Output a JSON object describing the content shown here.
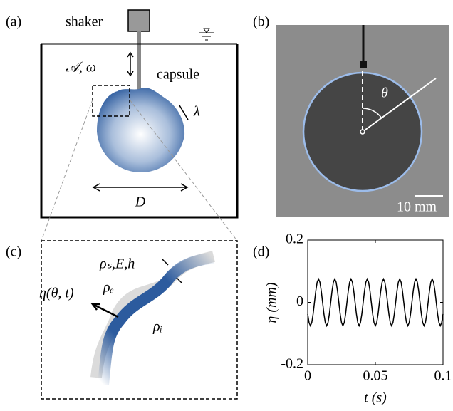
{
  "panels": {
    "a": {
      "label": "(a)",
      "shaker": "shaker",
      "forcing": "𝒜, ω",
      "capsule": "capsule",
      "wavelength": "λ",
      "diameter": "D"
    },
    "b": {
      "label": "(b)",
      "angle": "θ",
      "scale_bar": "10 mm"
    },
    "c": {
      "label": "(c)",
      "shell": "ρₛ,E,h",
      "outer": "ρₑ",
      "inner": "ρᵢ",
      "displacement": "η(θ, t)"
    }
  },
  "chart_data": {
    "type": "line",
    "panel_label": "(d)",
    "x_label": "t (s)",
    "y_label": "η (mm)",
    "xlim": [
      0,
      0.1
    ],
    "ylim": [
      -0.2,
      0.2
    ],
    "xticks": [
      0,
      0.05,
      0.1
    ],
    "yticks": [
      -0.2,
      0,
      0.2
    ],
    "color": "#000000",
    "x": [
      0,
      0.001,
      0.002,
      0.003,
      0.004,
      0.005,
      0.006,
      0.007,
      0.008,
      0.009,
      0.01,
      0.011,
      0.012,
      0.013,
      0.014,
      0.015,
      0.016,
      0.017,
      0.018,
      0.019,
      0.02,
      0.021,
      0.022,
      0.023,
      0.024,
      0.025,
      0.026,
      0.027,
      0.028,
      0.029,
      0.03,
      0.031,
      0.032,
      0.033,
      0.034,
      0.035,
      0.036,
      0.037,
      0.038,
      0.039,
      0.04,
      0.041,
      0.042,
      0.043,
      0.044,
      0.045,
      0.046,
      0.047,
      0.048,
      0.049,
      0.05,
      0.051,
      0.052,
      0.053,
      0.054,
      0.055,
      0.056,
      0.057,
      0.058,
      0.059,
      0.06,
      0.061,
      0.062,
      0.063,
      0.064,
      0.065,
      0.066,
      0.067,
      0.068,
      0.069,
      0.07,
      0.071,
      0.072,
      0.073,
      0.074,
      0.075,
      0.076,
      0.077,
      0.078,
      0.079,
      0.08,
      0.081,
      0.082,
      0.083,
      0.084,
      0.085,
      0.086,
      0.087,
      0.088,
      0.089,
      0.09,
      0.091,
      0.092,
      0.093,
      0.094,
      0.095,
      0.096,
      0.097,
      0.098,
      0.099,
      0.1
    ],
    "values": [
      -0.0375,
      -0.065,
      -0.075,
      -0.065,
      -0.0375,
      0,
      0.0375,
      0.065,
      0.075,
      0.065,
      0.0375,
      0,
      -0.0375,
      -0.065,
      -0.075,
      -0.065,
      -0.0375,
      0,
      0.0375,
      0.065,
      0.075,
      0.065,
      0.0375,
      0,
      -0.0375,
      -0.065,
      -0.075,
      -0.065,
      -0.0375,
      0,
      0.0375,
      0.065,
      0.075,
      0.065,
      0.0375,
      0,
      -0.0375,
      -0.065,
      -0.075,
      -0.065,
      -0.0375,
      0,
      0.0375,
      0.065,
      0.075,
      0.065,
      0.0375,
      0,
      -0.0375,
      -0.065,
      -0.075,
      -0.065,
      -0.0375,
      0,
      0.0375,
      0.065,
      0.075,
      0.065,
      0.0375,
      0,
      -0.0375,
      -0.065,
      -0.075,
      -0.065,
      -0.0375,
      0,
      0.0375,
      0.065,
      0.075,
      0.065,
      0.0375,
      0,
      -0.0375,
      -0.065,
      -0.075,
      -0.065,
      -0.0375,
      0,
      0.0375,
      0.065,
      0.075,
      0.065,
      0.0375,
      0,
      -0.0375,
      -0.065,
      -0.075,
      -0.065,
      -0.0375,
      0,
      0.0375,
      0.065,
      0.075,
      0.065,
      0.0375,
      0,
      -0.0375,
      -0.065,
      -0.075,
      -0.065,
      -0.0375
    ]
  }
}
